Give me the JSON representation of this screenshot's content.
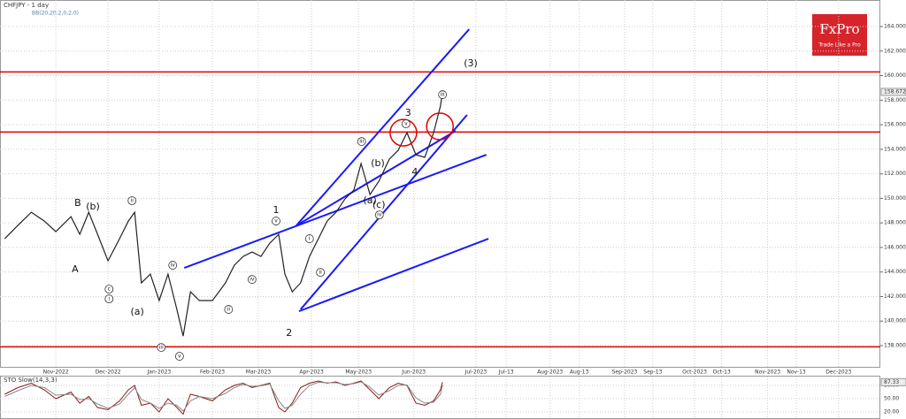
{
  "chart_data": {
    "type": "line",
    "title": "CHFJPY - 1 day",
    "subtitle": "BB(20,20,2,0,2,0)",
    "xlim": [
      9.93,
      26.8
    ],
    "ylim": [
      136.2,
      166.16
    ],
    "grid": true,
    "xticks": [
      {
        "value": 11,
        "label": "Nov-2022"
      },
      {
        "value": 12,
        "label": "Dec-2022"
      },
      {
        "value": 12.98,
        "label": "Jan-2023"
      },
      {
        "value": 14,
        "label": "Feb-2023"
      },
      {
        "value": 14.88,
        "label": "Mar-2023"
      },
      {
        "value": 15.9,
        "label": "Apr-2023"
      },
      {
        "value": 16.8,
        "label": "May-2023"
      },
      {
        "value": 17.86,
        "label": "Jun-2023"
      },
      {
        "value": 19.05,
        "label": "Jul-2023"
      },
      {
        "value": 19.63,
        "label": "Jul-13"
      },
      {
        "value": 20.47,
        "label": "Aug-2023"
      },
      {
        "value": 21.03,
        "label": "Aug-13"
      },
      {
        "value": 21.9,
        "label": "Sep-2023"
      },
      {
        "value": 22.44,
        "label": "Sep-13"
      },
      {
        "value": 23.24,
        "label": "Oct-2023"
      },
      {
        "value": 23.76,
        "label": "Oct-13"
      },
      {
        "value": 24.64,
        "label": "Nov-2023"
      },
      {
        "value": 25.19,
        "label": "Nov-13"
      },
      {
        "value": 26,
        "label": "Dec-2023"
      }
    ],
    "yticks": [
      {
        "value": 138,
        "label": "138.000"
      },
      {
        "value": 140,
        "label": "140.000"
      },
      {
        "value": 142,
        "label": "142.000"
      },
      {
        "value": 144,
        "label": "144.000"
      },
      {
        "value": 146,
        "label": "146.000"
      },
      {
        "value": 148,
        "label": "148.000"
      },
      {
        "value": 150,
        "label": "150.000"
      },
      {
        "value": 152,
        "label": "152.000"
      },
      {
        "value": 154,
        "label": "154.000"
      },
      {
        "value": 156,
        "label": "156.000"
      },
      {
        "value": 158,
        "label": "158.000"
      },
      {
        "value": 160,
        "label": "160.000"
      },
      {
        "value": 162,
        "label": "162.000"
      },
      {
        "value": 164,
        "label": "164.000"
      }
    ],
    "x": [
      10.02,
      10.27,
      10.53,
      10.78,
      11.0,
      11.29,
      11.46,
      11.63,
      11.8,
      12.0,
      12.22,
      12.39,
      12.51,
      12.64,
      12.81,
      12.98,
      13.15,
      13.32,
      13.44,
      13.58,
      13.75,
      14.0,
      14.25,
      14.42,
      14.59,
      14.76,
      14.93,
      15.1,
      15.27,
      15.39,
      15.53,
      15.69,
      15.86,
      16.03,
      16.2,
      16.37,
      16.54,
      16.71,
      16.85,
      17.02,
      17.19,
      17.39,
      17.56,
      17.73,
      17.9,
      18.07,
      18.24,
      18.37,
      18.41
    ],
    "series": [
      {
        "color": "#222222",
        "values": [
          146.71,
          147.79,
          148.87,
          148.15,
          147.29,
          148.51,
          147.07,
          148.87,
          147.07,
          144.91,
          146.71,
          148.15,
          148.87,
          143.11,
          143.83,
          141.67,
          143.83,
          140.95,
          138.78,
          142.39,
          141.67,
          141.67,
          143.11,
          144.55,
          145.27,
          145.63,
          145.27,
          146.35,
          147.07,
          143.83,
          142.39,
          143.11,
          145.27,
          146.71,
          148.15,
          148.87,
          149.95,
          150.67,
          152.83,
          150.31,
          151.39,
          153.19,
          153.91,
          155.35,
          153.55,
          153.34,
          155.35,
          157.52,
          158.672
        ]
      }
    ],
    "last_price": 158.672,
    "hline_color": "#e00000",
    "hlines": [
      160.3,
      155.4,
      137.9
    ],
    "trend_color": "#1a1aff",
    "trendlines": [
      {
        "x": [
          15.61,
          18.92
        ],
        "y": [
          147.79,
          163.78
        ]
      },
      {
        "x": [
          15.69,
          18.88
        ],
        "y": [
          140.95,
          156.8
        ]
      },
      {
        "x": [
          13.46,
          19.25
        ],
        "y": [
          144.33,
          153.55
        ]
      },
      {
        "x": [
          15.66,
          19.29
        ],
        "y": [
          140.8,
          146.71
        ]
      },
      {
        "x": [
          15.61,
          18.66
        ],
        "y": [
          147.79,
          155.5
        ]
      }
    ],
    "highlights": [
      {
        "x": 17.66,
        "y": 155.35
      },
      {
        "x": 18.36,
        "y": 155.86
      }
    ],
    "wave_labels": [
      {
        "text": "1",
        "x": 15.22,
        "y": 149.01,
        "circled": false
      },
      {
        "text": "2",
        "x": 15.47,
        "y": 139.0,
        "circled": false
      },
      {
        "text": "3",
        "x": 17.75,
        "y": 156.94,
        "circled": false
      },
      {
        "text": "4",
        "x": 17.88,
        "y": 152.11,
        "circled": false
      },
      {
        "text": "(3)",
        "x": 18.95,
        "y": 160.97,
        "circled": false
      },
      {
        "text": "A",
        "x": 11.37,
        "y": 144.19,
        "circled": false
      },
      {
        "text": "B",
        "x": 11.42,
        "y": 149.59,
        "circled": false
      },
      {
        "text": "(a)",
        "x": 12.56,
        "y": 140.73,
        "circled": false
      },
      {
        "text": "(b)",
        "x": 11.71,
        "y": 149.3,
        "circled": false
      },
      {
        "text": "(a)",
        "x": 17.02,
        "y": 149.81,
        "circled": false
      },
      {
        "text": "(b)",
        "x": 17.17,
        "y": 152.83,
        "circled": false
      },
      {
        "text": "(c)",
        "x": 17.19,
        "y": 149.45,
        "circled": false
      },
      {
        "text": "c",
        "x": 12.02,
        "y": 142.6,
        "circled": true
      },
      {
        "text": "i",
        "x": 12.02,
        "y": 141.81,
        "circled": true
      },
      {
        "text": "ii",
        "x": 12.46,
        "y": 149.81,
        "circled": true
      },
      {
        "text": "iii",
        "x": 13.02,
        "y": 137.85,
        "circled": true
      },
      {
        "text": "iv",
        "x": 13.24,
        "y": 144.55,
        "circled": true
      },
      {
        "text": "v",
        "x": 13.37,
        "y": 137.13,
        "circled": true
      },
      {
        "text": "ii",
        "x": 14.31,
        "y": 140.95,
        "circled": true
      },
      {
        "text": "iv",
        "x": 14.76,
        "y": 143.39,
        "circled": true
      },
      {
        "text": "v",
        "x": 15.22,
        "y": 148.15,
        "circled": true
      },
      {
        "text": "i",
        "x": 15.86,
        "y": 146.71,
        "circled": true
      },
      {
        "text": "ii",
        "x": 16.07,
        "y": 143.97,
        "circled": true
      },
      {
        "text": "iii",
        "x": 16.86,
        "y": 154.63,
        "circled": true
      },
      {
        "text": "iv",
        "x": 17.2,
        "y": 148.65,
        "circled": true
      },
      {
        "text": "v",
        "x": 17.71,
        "y": 156.07,
        "circled": true
      },
      {
        "text": "iii",
        "x": 18.41,
        "y": 158.45,
        "circled": true
      }
    ],
    "oscillator": {
      "title": "STO Slow(14,3,3)",
      "ylim": [
        4,
        100
      ],
      "yticks": [
        {
          "value": 80,
          "label": "80.00"
        },
        {
          "value": 50,
          "label": "50.00"
        },
        {
          "value": 20,
          "label": "20.00"
        }
      ],
      "last_value": 87.33,
      "series": [
        {
          "color": "#8b1a1a",
          "values": [
            60,
            75,
            85,
            70,
            50,
            65,
            40,
            55,
            30,
            25,
            45,
            70,
            80,
            35,
            40,
            20,
            50,
            30,
            15,
            60,
            55,
            45,
            70,
            80,
            85,
            75,
            80,
            85,
            30,
            20,
            40,
            75,
            85,
            90,
            85,
            88,
            80,
            85,
            90,
            70,
            50,
            75,
            85,
            80,
            40,
            35,
            45,
            70,
            87.33
          ]
        },
        {
          "color": "#888888",
          "values": [
            55,
            68,
            80,
            75,
            58,
            60,
            48,
            50,
            38,
            28,
            38,
            60,
            75,
            48,
            40,
            28,
            40,
            35,
            22,
            45,
            55,
            50,
            62,
            75,
            82,
            78,
            79,
            83,
            45,
            28,
            35,
            60,
            80,
            87,
            86,
            86,
            82,
            84,
            88,
            76,
            58,
            68,
            80,
            81,
            52,
            40,
            42,
            60,
            80
          ]
        }
      ]
    }
  },
  "logo": {
    "name": "FxPro",
    "tagline": "Trade Like a Pro"
  }
}
